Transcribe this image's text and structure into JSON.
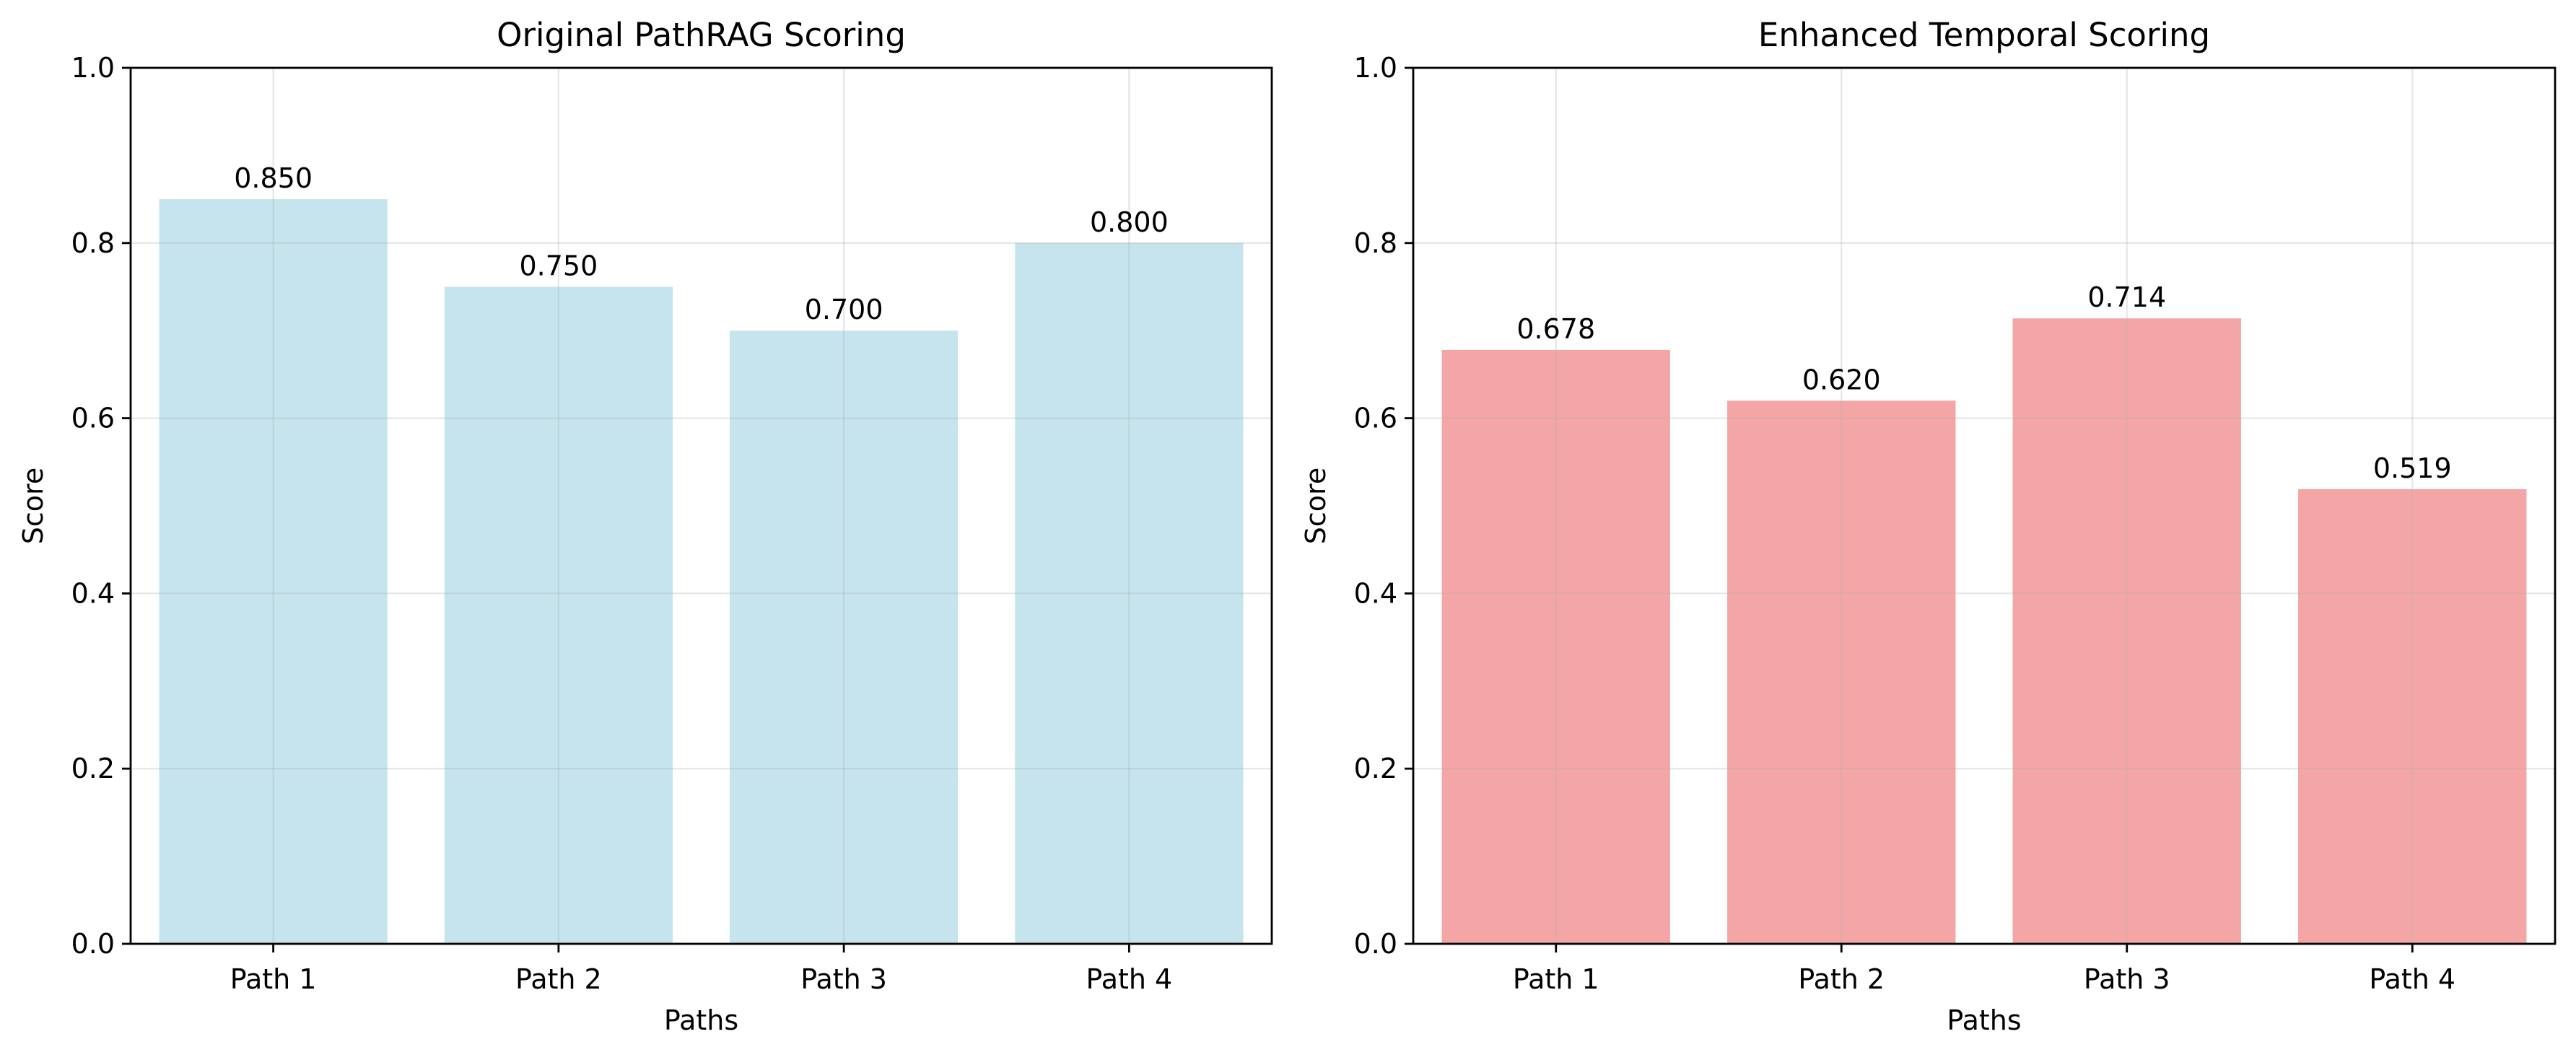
{
  "chart_data": [
    {
      "type": "bar",
      "title": "Original PathRAG Scoring",
      "xlabel": "Paths",
      "ylabel": "Score",
      "categories": [
        "Path 1",
        "Path 2",
        "Path 3",
        "Path 4"
      ],
      "values": [
        0.85,
        0.75,
        0.7,
        0.8
      ],
      "data_labels": [
        "0.850",
        "0.750",
        "0.700",
        "0.800"
      ],
      "ylim": [
        0,
        1
      ],
      "yticks": [
        0.0,
        0.2,
        0.4,
        0.6,
        0.8,
        1.0
      ],
      "ytick_labels": [
        "0.0",
        "0.2",
        "0.4",
        "0.6",
        "0.8",
        "1.0"
      ],
      "color": "#add8e6",
      "bar_opacity": 0.7,
      "grid": true
    },
    {
      "type": "bar",
      "title": "Enhanced Temporal Scoring",
      "xlabel": "Paths",
      "ylabel": "Score",
      "categories": [
        "Path 1",
        "Path 2",
        "Path 3",
        "Path 4"
      ],
      "values": [
        0.678,
        0.62,
        0.714,
        0.519
      ],
      "data_labels": [
        "0.678",
        "0.620",
        "0.714",
        "0.519"
      ],
      "ylim": [
        0,
        1
      ],
      "yticks": [
        0.0,
        0.2,
        0.4,
        0.6,
        0.8,
        1.0
      ],
      "ytick_labels": [
        "0.0",
        "0.2",
        "0.4",
        "0.6",
        "0.8",
        "1.0"
      ],
      "color": "#f08080",
      "bar_opacity": 0.7,
      "grid": true
    }
  ]
}
